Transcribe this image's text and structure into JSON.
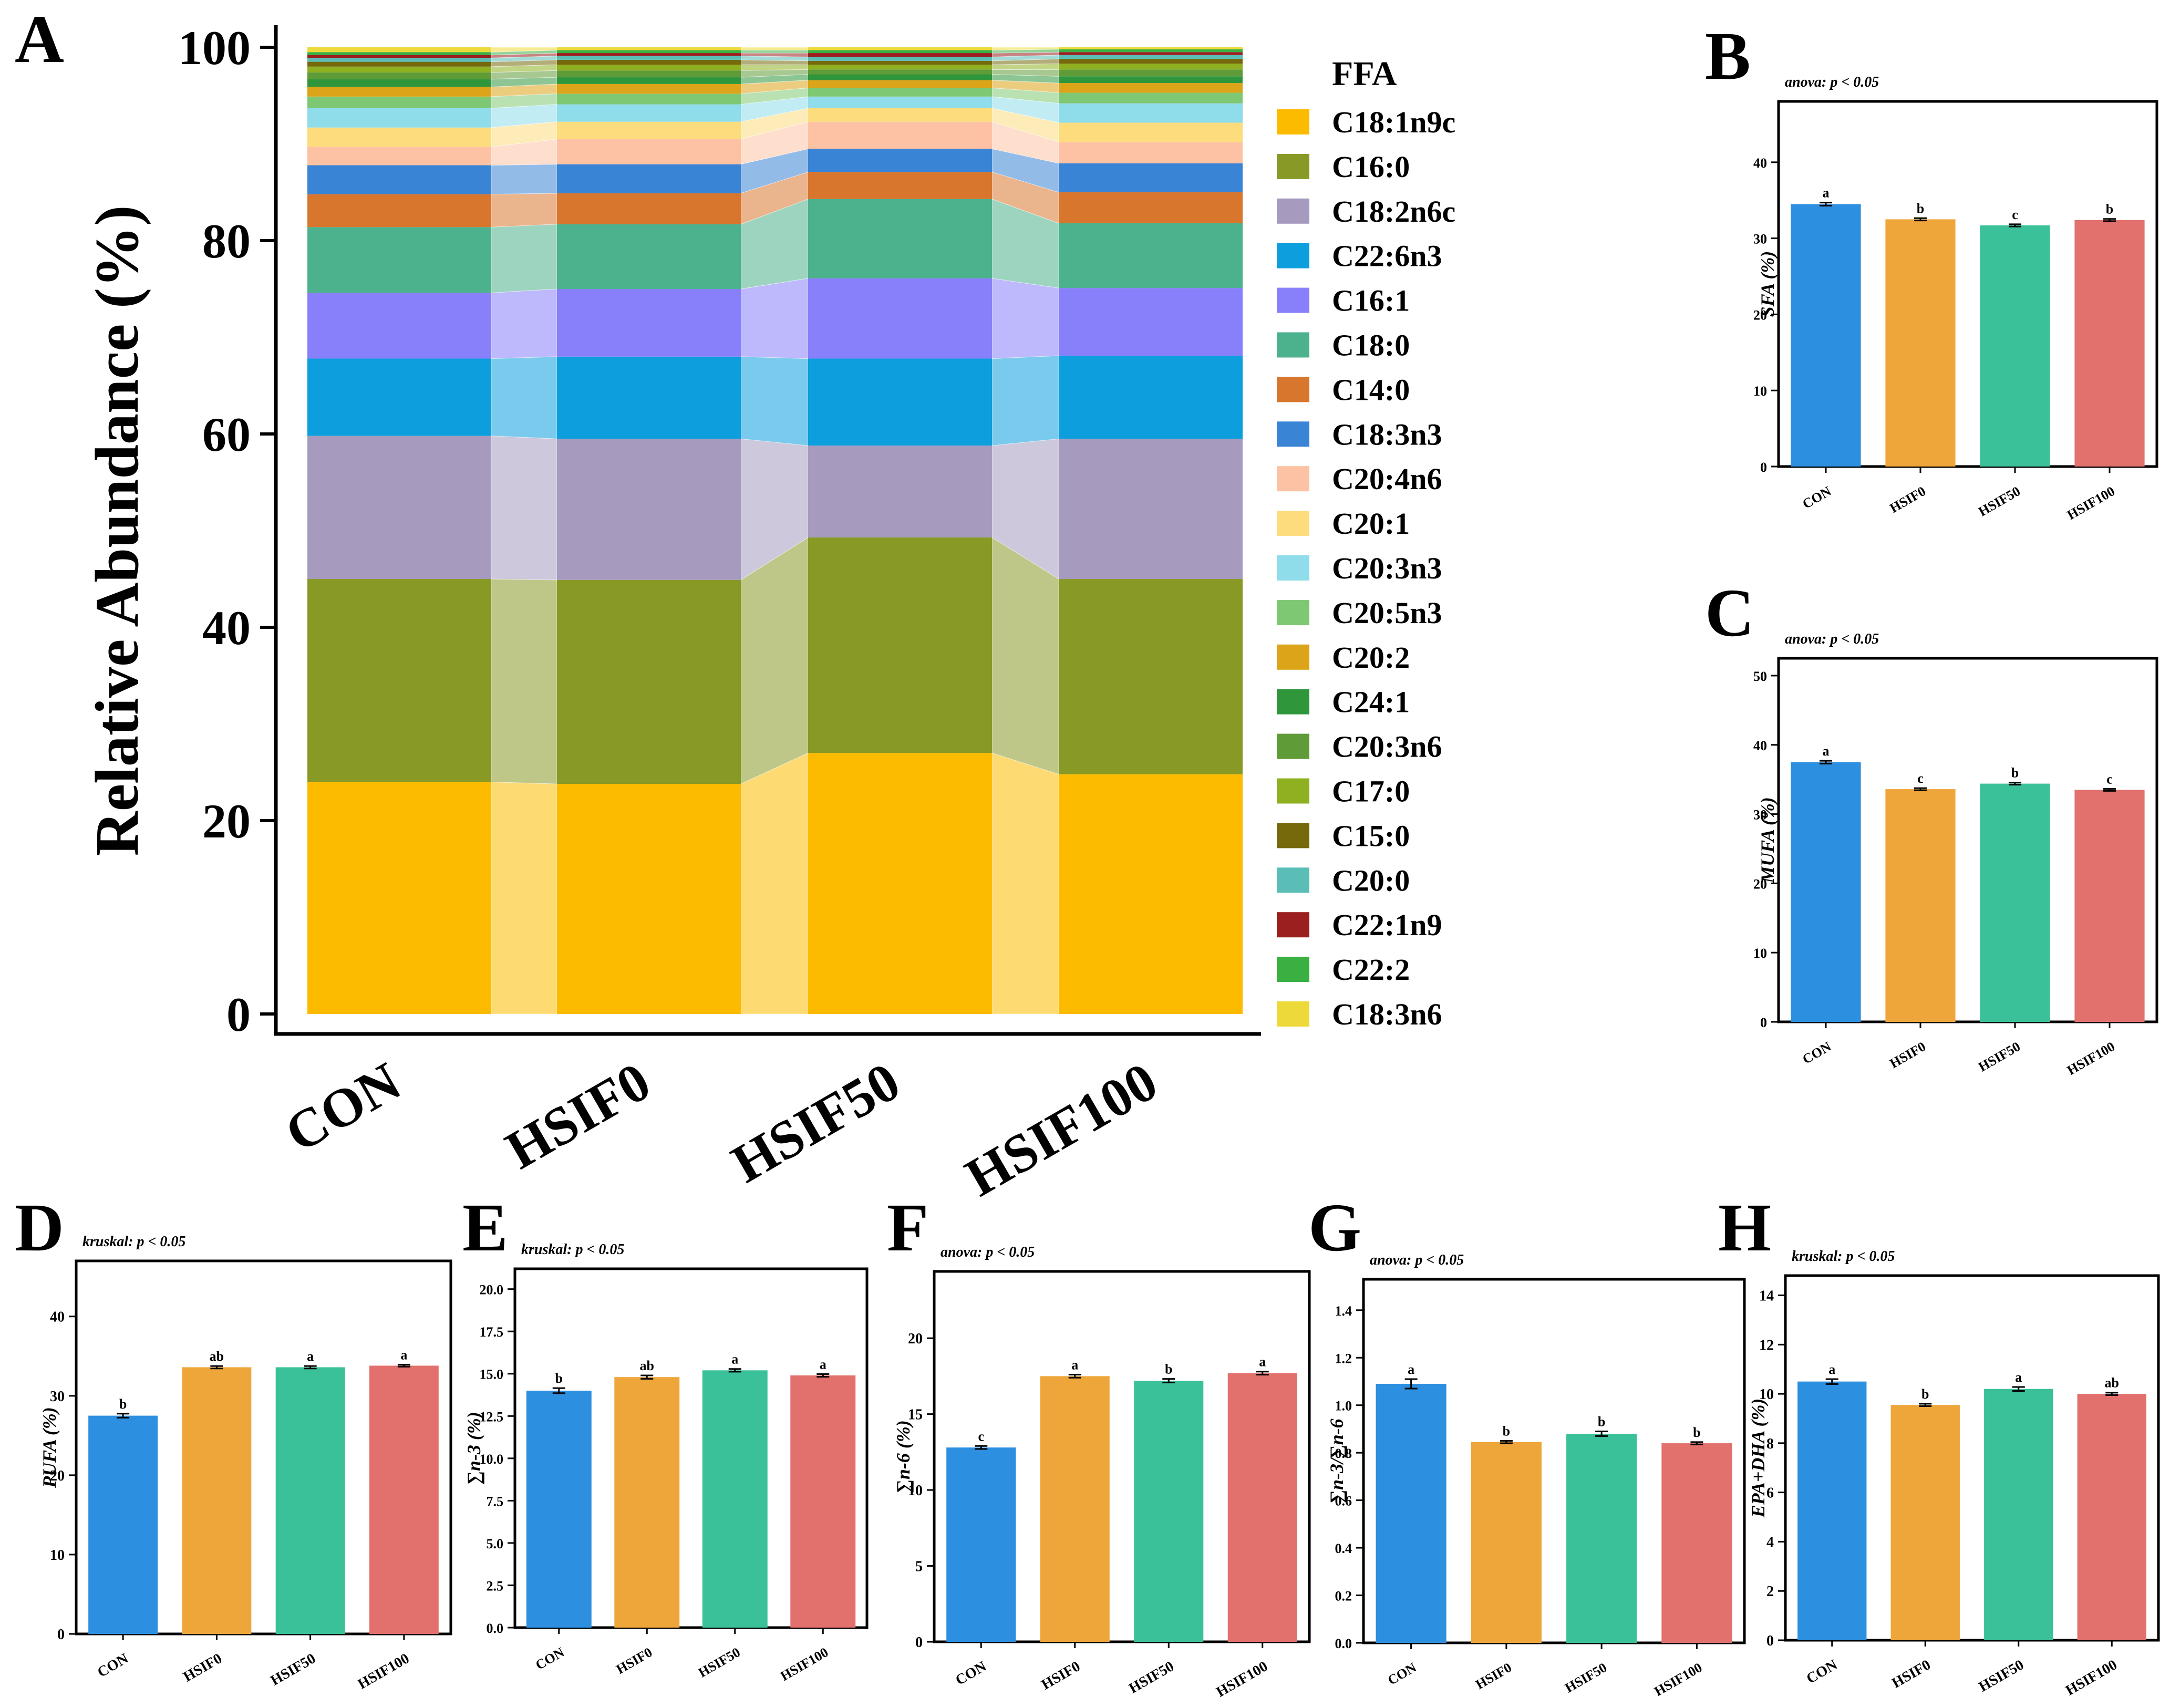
{
  "chart_data": [
    {
      "panel": "A",
      "type": "area",
      "subtype": "stacked-bar-with-flows",
      "categories": [
        "CON",
        "HSIF0",
        "HSIF50",
        "HSIF100"
      ],
      "ylabel": "Relative Abundance (%)",
      "ylim": [
        0,
        100
      ],
      "yticks": [
        "0",
        "20",
        "40",
        "60",
        "80",
        "100"
      ],
      "legend_title": "FFA",
      "legend_position": "right",
      "series": [
        {
          "name": "C18:1n9c",
          "color": "#FDBB00",
          "values": [
            24.0,
            23.8,
            27.0,
            24.8
          ]
        },
        {
          "name": "C16:0",
          "color": "#899926",
          "values": [
            21.0,
            21.1,
            22.3,
            20.2
          ]
        },
        {
          "name": "C18:2n6c",
          "color": "#A69BBF",
          "values": [
            14.8,
            14.6,
            9.5,
            14.5
          ]
        },
        {
          "name": "C22:6n3",
          "color": "#0D9EDE",
          "values": [
            8.0,
            8.5,
            9.0,
            8.6
          ]
        },
        {
          "name": "C16:1",
          "color": "#8880FA",
          "values": [
            6.8,
            7.0,
            8.3,
            7.0
          ]
        },
        {
          "name": "C18:0",
          "color": "#4CB18D",
          "values": [
            6.8,
            6.7,
            8.2,
            6.7
          ]
        },
        {
          "name": "C14:0",
          "color": "#D8762E",
          "values": [
            3.4,
            3.2,
            2.8,
            3.2
          ]
        },
        {
          "name": "C18:3n3",
          "color": "#3A84D6",
          "values": [
            3.0,
            3.0,
            2.4,
            3.0
          ]
        },
        {
          "name": "C20:4n6",
          "color": "#FDC2A4",
          "values": [
            1.9,
            2.6,
            2.8,
            2.2
          ]
        },
        {
          "name": "C20:1",
          "color": "#FCDC7D",
          "values": [
            2.0,
            1.8,
            1.4,
            2.0
          ]
        },
        {
          "name": "C20:3n3",
          "color": "#8FDCEB",
          "values": [
            2.0,
            1.8,
            1.2,
            2.0
          ]
        },
        {
          "name": "C20:5n3",
          "color": "#7FC873",
          "values": [
            1.2,
            1.1,
            0.9,
            1.1
          ]
        },
        {
          "name": "C20:2",
          "color": "#DCA418",
          "values": [
            1.0,
            1.0,
            0.8,
            1.0
          ]
        },
        {
          "name": "C24:1",
          "color": "#2F963C",
          "values": [
            0.8,
            0.7,
            0.6,
            0.7
          ]
        },
        {
          "name": "C20:3n6",
          "color": "#5F9B36",
          "values": [
            0.7,
            0.7,
            0.5,
            0.7
          ]
        },
        {
          "name": "C17:0",
          "color": "#8FB021",
          "values": [
            0.6,
            0.6,
            0.5,
            0.6
          ]
        },
        {
          "name": "C15:0",
          "color": "#75690B",
          "values": [
            0.5,
            0.5,
            0.4,
            0.5
          ]
        },
        {
          "name": "C20:0",
          "color": "#5ABEB7",
          "values": [
            0.4,
            0.4,
            0.4,
            0.4
          ]
        },
        {
          "name": "C22:1n9",
          "color": "#9B1F1F",
          "values": [
            0.3,
            0.3,
            0.4,
            0.3
          ]
        },
        {
          "name": "C22:2",
          "color": "#3AB043",
          "values": [
            0.3,
            0.3,
            0.3,
            0.3
          ]
        },
        {
          "name": "C18:3n6",
          "color": "#EED93A",
          "values": [
            0.5,
            0.3,
            0.3,
            0.2
          ]
        }
      ]
    },
    {
      "panel": "B",
      "type": "bar",
      "ylabel": "SFA (%)",
      "stat": "anova: p < 0.05",
      "categories": [
        "CON",
        "HSIF0",
        "HSIF50",
        "HSIF100"
      ],
      "values": [
        34.5,
        32.5,
        31.7,
        32.4
      ],
      "errors": [
        0.2,
        0.15,
        0.15,
        0.15
      ],
      "letters": [
        "a",
        "b",
        "c",
        "b"
      ],
      "ylim": [
        0,
        48
      ],
      "yticks": [
        "0",
        "10",
        "20",
        "30",
        "40"
      ]
    },
    {
      "panel": "C",
      "type": "bar",
      "ylabel": "MUFA (%)",
      "stat": "anova: p < 0.05",
      "categories": [
        "CON",
        "HSIF0",
        "HSIF50",
        "HSIF100"
      ],
      "values": [
        37.5,
        33.6,
        34.4,
        33.5
      ],
      "errors": [
        0.2,
        0.15,
        0.15,
        0.15
      ],
      "letters": [
        "a",
        "c",
        "b",
        "c"
      ],
      "ylim": [
        0,
        52.5
      ],
      "yticks": [
        "0",
        "10",
        "20",
        "30",
        "40",
        "50"
      ]
    },
    {
      "panel": "D",
      "type": "bar",
      "ylabel": "PUFA (%)",
      "stat": "kruskal: p < 0.05",
      "categories": [
        "CON",
        "HSIF0",
        "HSIF50",
        "HSIF100"
      ],
      "values": [
        27.5,
        33.6,
        33.6,
        33.8
      ],
      "errors": [
        0.25,
        0.15,
        0.15,
        0.12
      ],
      "letters": [
        "b",
        "ab",
        "a",
        "a"
      ],
      "ylim": [
        0,
        47
      ],
      "yticks": [
        "0",
        "10",
        "20",
        "30",
        "40"
      ]
    },
    {
      "panel": "E",
      "type": "bar",
      "ylabel": "∑n-3 (%)",
      "stat": "kruskal: p < 0.05",
      "categories": [
        "CON",
        "HSIF0",
        "HSIF50",
        "HSIF100"
      ],
      "values": [
        14.0,
        14.8,
        15.2,
        14.9
      ],
      "errors": [
        0.15,
        0.1,
        0.08,
        0.08
      ],
      "letters": [
        "b",
        "ab",
        "a",
        "a"
      ],
      "ylim": [
        0,
        21.2
      ],
      "yticks": [
        "0.0",
        "2.5",
        "5.0",
        "7.5",
        "10.0",
        "12.5",
        "15.0",
        "17.5",
        "20.0"
      ]
    },
    {
      "panel": "F",
      "type": "bar",
      "ylabel": "∑n-6 (%)",
      "stat": "anova: p < 0.05",
      "categories": [
        "CON",
        "HSIF0",
        "HSIF50",
        "HSIF100"
      ],
      "values": [
        12.8,
        17.5,
        17.2,
        17.7
      ],
      "errors": [
        0.1,
        0.1,
        0.12,
        0.1
      ],
      "letters": [
        "c",
        "a",
        "b",
        "a"
      ],
      "ylim": [
        0,
        24.4
      ],
      "yticks": [
        "0",
        "5",
        "10",
        "15",
        "20"
      ]
    },
    {
      "panel": "G",
      "type": "bar",
      "ylabel": "∑n-3/∑n-6",
      "stat": "anova: p < 0.05",
      "categories": [
        "CON",
        "HSIF0",
        "HSIF50",
        "HSIF100"
      ],
      "values": [
        1.09,
        0.845,
        0.88,
        0.84
      ],
      "errors": [
        0.02,
        0.005,
        0.01,
        0.005
      ],
      "letters": [
        "a",
        "b",
        "b",
        "b"
      ],
      "ylim": [
        0,
        1.53
      ],
      "yticks": [
        "0.0",
        "0.2",
        "0.4",
        "0.6",
        "0.8",
        "1.0",
        "1.2",
        "1.4"
      ]
    },
    {
      "panel": "H",
      "type": "bar",
      "ylabel": "EPA+DHA (%)",
      "stat": "kruskal: p < 0.05",
      "categories": [
        "CON",
        "HSIF0",
        "HSIF50",
        "HSIF100"
      ],
      "values": [
        10.5,
        9.55,
        10.2,
        10.0
      ],
      "errors": [
        0.1,
        0.05,
        0.08,
        0.05
      ],
      "letters": [
        "a",
        "b",
        "a",
        "ab"
      ],
      "ylim": [
        0,
        14.8
      ],
      "yticks": [
        "0",
        "2",
        "4",
        "6",
        "8",
        "10",
        "12",
        "14"
      ]
    }
  ],
  "bar_colors": [
    "#2D8FE0",
    "#EEA63A",
    "#3AC19A",
    "#E2706C"
  ]
}
